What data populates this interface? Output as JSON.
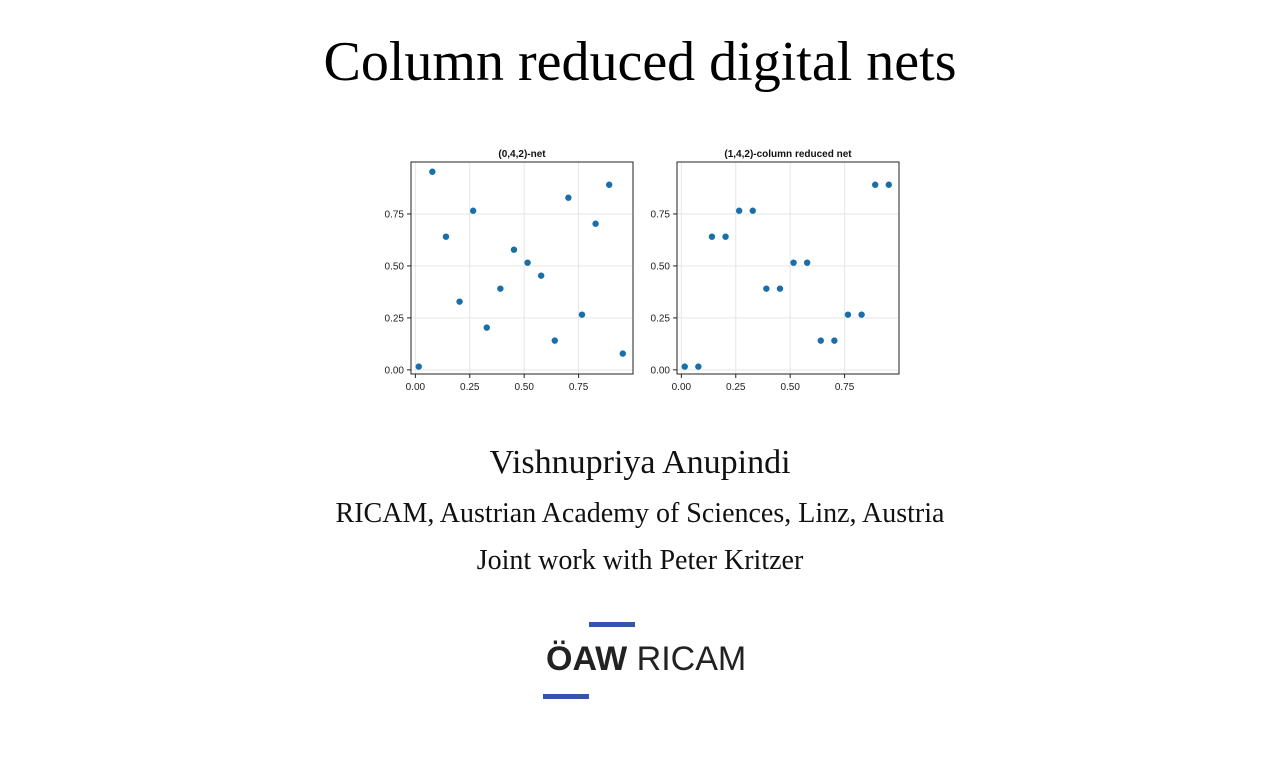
{
  "slide": {
    "title": "Column reduced digital nets",
    "author": "Vishnupriya Anupindi",
    "affiliation": "RICAM, Austrian Academy of Sciences, Linz, Austria",
    "joint": "Joint work with Peter Kritzer"
  },
  "logo": {
    "text_bold": "ÖAW",
    "text_light": " RICAM",
    "accent_color": "#3355aa"
  },
  "colors": {
    "point": "#1a6fa8",
    "grid": "#e6e6e6",
    "axis": "#222222"
  },
  "chart_data": [
    {
      "type": "scatter",
      "title": "(0,4,2)-net",
      "xlabel": "",
      "ylabel": "",
      "xlim": [
        -0.02,
        1.0
      ],
      "ylim": [
        -0.02,
        1.0
      ],
      "xticks": [
        "0.00",
        "0.25",
        "0.50",
        "0.75"
      ],
      "yticks": [
        "0.00",
        "0.25",
        "0.50",
        "0.75"
      ],
      "grid": true,
      "x": [
        0.0156,
        0.0781,
        0.1406,
        0.2031,
        0.2656,
        0.3281,
        0.3906,
        0.4531,
        0.5156,
        0.5781,
        0.6406,
        0.7031,
        0.7656,
        0.8281,
        0.8906,
        0.9531
      ],
      "y": [
        0.0156,
        0.9531,
        0.6406,
        0.3281,
        0.7656,
        0.2031,
        0.3906,
        0.5781,
        0.5156,
        0.4531,
        0.1406,
        0.8281,
        0.2656,
        0.7031,
        0.8906,
        0.0781
      ]
    },
    {
      "type": "scatter",
      "title": "(1,4,2)-column reduced net",
      "xlabel": "",
      "ylabel": "",
      "xlim": [
        -0.02,
        1.0
      ],
      "ylim": [
        -0.02,
        1.0
      ],
      "xticks": [
        "0.00",
        "0.25",
        "0.50",
        "0.75"
      ],
      "yticks": [
        "0.00",
        "0.25",
        "0.50",
        "0.75"
      ],
      "grid": true,
      "x": [
        0.0156,
        0.0781,
        0.1406,
        0.2031,
        0.2656,
        0.3281,
        0.3906,
        0.4531,
        0.5156,
        0.5781,
        0.6406,
        0.7031,
        0.7656,
        0.8281,
        0.8906,
        0.9531
      ],
      "y": [
        0.0156,
        0.0156,
        0.6406,
        0.6406,
        0.7656,
        0.7656,
        0.3906,
        0.3906,
        0.5156,
        0.5156,
        0.1406,
        0.1406,
        0.2656,
        0.2656,
        0.8906,
        0.8906
      ]
    }
  ]
}
